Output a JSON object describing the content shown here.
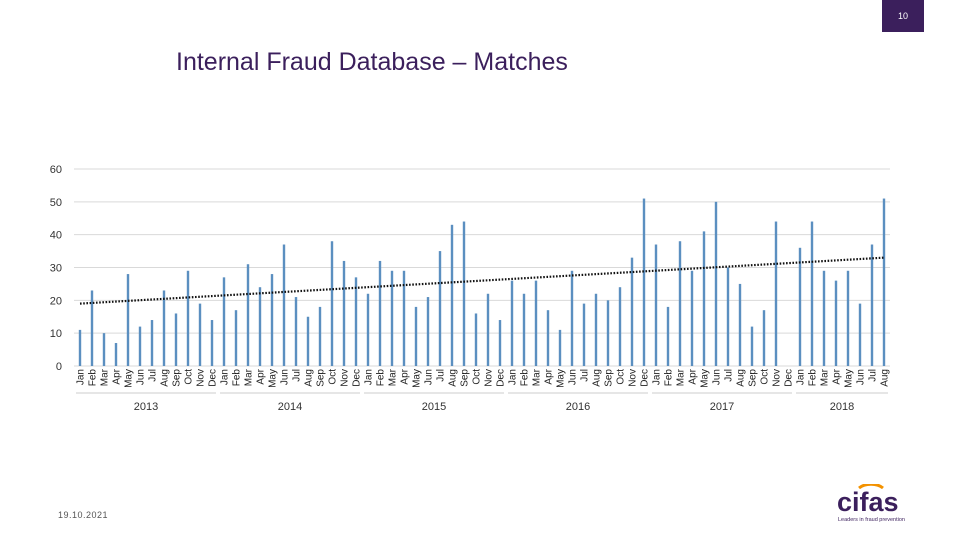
{
  "page_number": "10",
  "title": "Internal Fraud Database – Matches",
  "date": "19.10.2021",
  "logo": {
    "text": "cifas",
    "tagline": "Leaders in fraud prevention"
  },
  "colors": {
    "bar": "#5b8fc0",
    "trend": "#111111",
    "accent": "#3b1f5c",
    "grid": "#d9d9d9"
  },
  "chart_data": {
    "type": "bar",
    "title": "Internal Fraud Database – Matches",
    "ylim": [
      0,
      60
    ],
    "yticks": [
      "0",
      "10",
      "20",
      "30",
      "40",
      "50",
      "60"
    ],
    "grid": true,
    "trendline": {
      "style": "dotted",
      "start": 19,
      "end": 33
    },
    "years": [
      {
        "label": "2013",
        "start": 0,
        "count": 12
      },
      {
        "label": "2014",
        "start": 12,
        "count": 12
      },
      {
        "label": "2015",
        "start": 24,
        "count": 12
      },
      {
        "label": "2016",
        "start": 36,
        "count": 12
      },
      {
        "label": "2017",
        "start": 48,
        "count": 12
      },
      {
        "label": "2018",
        "start": 60,
        "count": 8
      }
    ],
    "categories": [
      "Jan",
      "Feb",
      "Mar",
      "Apr",
      "May",
      "Jun",
      "Jul",
      "Aug",
      "Sep",
      "Oct",
      "Nov",
      "Dec",
      "Jan",
      "Feb",
      "Mar",
      "Apr",
      "May",
      "Jun",
      "Jul",
      "Aug",
      "Sep",
      "Oct",
      "Nov",
      "Dec",
      "Jan",
      "Feb",
      "Mar",
      "Apr",
      "May",
      "Jun",
      "Jul",
      "Aug",
      "Sep",
      "Oct",
      "Nov",
      "Dec",
      "Jan",
      "Feb",
      "Mar",
      "Apr",
      "May",
      "Jun",
      "Jul",
      "Aug",
      "Sep",
      "Oct",
      "Nov",
      "Dec",
      "Jan",
      "Feb",
      "Mar",
      "Apr",
      "May",
      "Jun",
      "Jul",
      "Aug",
      "Sep",
      "Oct",
      "Nov",
      "Dec",
      "Jan",
      "Feb",
      "Mar",
      "Apr",
      "May",
      "Jun",
      "Jul",
      "Aug"
    ],
    "values": [
      11,
      23,
      10,
      7,
      28,
      12,
      14,
      23,
      16,
      29,
      19,
      14,
      27,
      17,
      31,
      24,
      28,
      37,
      21,
      15,
      18,
      38,
      32,
      27,
      22,
      32,
      29,
      29,
      18,
      21,
      35,
      43,
      44,
      16,
      22,
      14,
      26,
      22,
      26,
      17,
      11,
      29,
      19,
      22,
      20,
      24,
      33,
      51,
      37,
      18,
      38,
      29,
      41,
      50,
      30,
      25,
      12,
      17,
      44,
      0,
      36,
      44,
      29,
      26,
      29,
      19,
      37,
      51
    ]
  }
}
